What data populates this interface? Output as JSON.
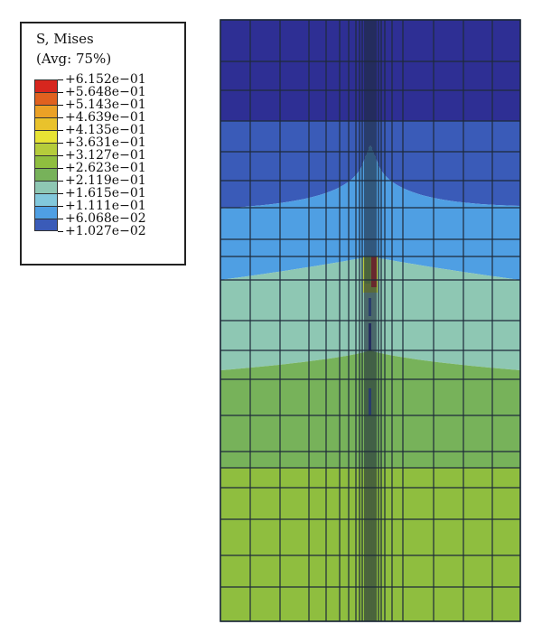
{
  "legend": {
    "title": "S, Mises",
    "subtitle": "(Avg: 75%)",
    "levels": [
      {
        "label": "+6.152e−01",
        "value": 0.6152,
        "color": "#d7261e"
      },
      {
        "label": "+5.648e−01",
        "value": 0.5648,
        "color": "#e0611f"
      },
      {
        "label": "+5.143e−01",
        "value": 0.5143,
        "color": "#eba126"
      },
      {
        "label": "+4.639e−01",
        "value": 0.4639,
        "color": "#e9c22c"
      },
      {
        "label": "+4.135e−01",
        "value": 0.4135,
        "color": "#e7e334"
      },
      {
        "label": "+3.631e−01",
        "value": 0.3631,
        "color": "#b5cc3b"
      },
      {
        "label": "+3.127e−01",
        "value": 0.3127,
        "color": "#8fbe3f"
      },
      {
        "label": "+2.623e−01",
        "value": 0.2623,
        "color": "#77b25a"
      },
      {
        "label": "+2.119e−01",
        "value": 0.2119,
        "color": "#8ec7b3"
      },
      {
        "label": "+1.615e−01",
        "value": 0.1615,
        "color": "#82c8dc"
      },
      {
        "label": "+1.111e−01",
        "value": 0.1111,
        "color": "#4f9fe3"
      },
      {
        "label": "+6.068e−02",
        "value": 0.06068,
        "color": "#3a5bb8"
      },
      {
        "label": "+1.027e−02",
        "value": 0.01027,
        "color": "#2e2f94"
      }
    ]
  },
  "model": {
    "colors": {
      "navy": "#2e2f94",
      "dark_blue": "#3a5bb8",
      "blue": "#4f9fe3",
      "teal": "#8ec7b3",
      "mid_green": "#77b25a",
      "green": "#8fbe3f",
      "yellow_green": "#b5cc3b",
      "red": "#d7261e",
      "mesh_line": "#1e2a3a"
    }
  }
}
